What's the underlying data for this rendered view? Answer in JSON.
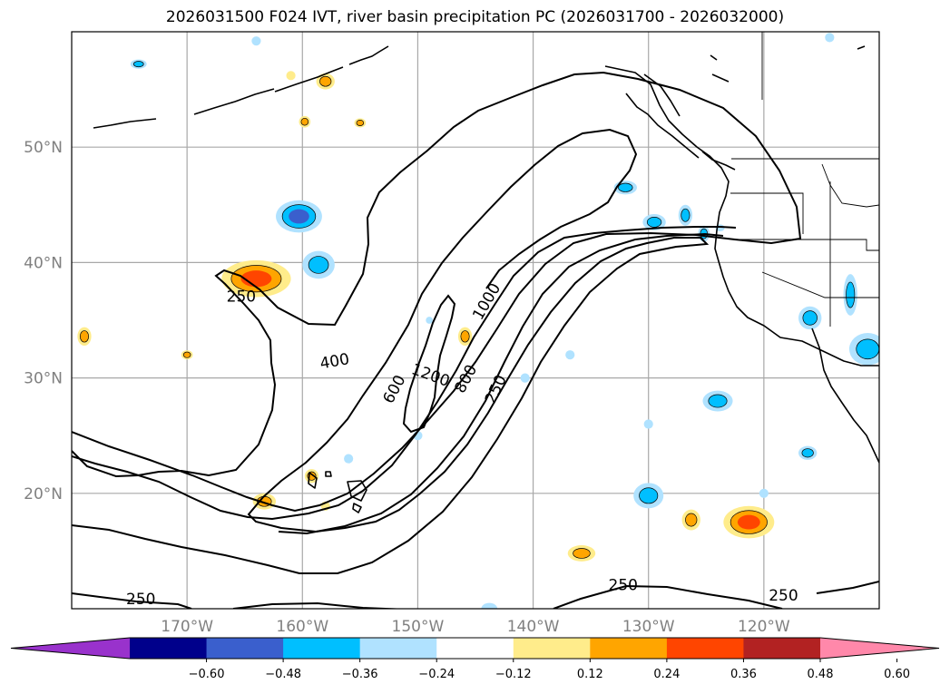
{
  "chart_data": {
    "type": "map-contour",
    "title": "2026031500 F024 IVT, river basin precipitation PC (2026031700 - 2026032000)",
    "lon_range": [
      -180,
      -110
    ],
    "lat_range": [
      10,
      60
    ],
    "x_ticks": [
      {
        "value": -170,
        "label": "170°W"
      },
      {
        "value": -160,
        "label": "160°W"
      },
      {
        "value": -150,
        "label": "150°W"
      },
      {
        "value": -140,
        "label": "140°W"
      },
      {
        "value": -130,
        "label": "130°W"
      },
      {
        "value": -120,
        "label": "120°W"
      }
    ],
    "y_ticks": [
      {
        "value": 20,
        "label": "20°N"
      },
      {
        "value": 30,
        "label": "30°N"
      },
      {
        "value": 40,
        "label": "40°N"
      },
      {
        "value": 50,
        "label": "50°N"
      }
    ],
    "ivt_contour_levels": [
      250,
      400,
      600,
      800,
      1000,
      1200
    ],
    "contour_labels": [
      {
        "text": "250",
        "lon": -165.3,
        "lat": 37.0,
        "angle": 0
      },
      {
        "text": "400",
        "lon": -157.2,
        "lat": 31.4,
        "angle": -10
      },
      {
        "text": "600",
        "lon": -152.0,
        "lat": 29.0,
        "angle": -62
      },
      {
        "text": "1200",
        "lon": -148.9,
        "lat": 30.2,
        "angle": 20
      },
      {
        "text": "800",
        "lon": -145.8,
        "lat": 29.9,
        "angle": -62
      },
      {
        "text": "1000",
        "lon": -144.0,
        "lat": 36.6,
        "angle": -60
      },
      {
        "text": "250",
        "lon": -143.2,
        "lat": 29.0,
        "angle": -65
      },
      {
        "text": "250",
        "lon": -174.0,
        "lat": 10.8,
        "angle": 0
      },
      {
        "text": "250",
        "lon": -132.2,
        "lat": 12.0,
        "angle": 0
      },
      {
        "text": "250",
        "lon": -118.3,
        "lat": 11.1,
        "angle": 0
      }
    ],
    "colorbar": {
      "colors": [
        "#9932CC",
        "#00008B",
        "#3A5FCD",
        "#00BFFF",
        "#B0E2FF",
        "#FFFFFF",
        "#FFEC8B",
        "#FFA500",
        "#FF4500",
        "#B22222",
        "#FF88AA"
      ],
      "ticks": [
        "−0.60",
        "−0.48",
        "−0.36",
        "−0.24",
        "−0.12",
        "0.12",
        "0.24",
        "0.36",
        "0.48",
        "0.60"
      ],
      "extend": "both"
    },
    "precip_pc_patches": [
      {
        "lon": -160.3,
        "lat": 44.0,
        "rx": 2.0,
        "ry": 1.4,
        "colors": [
          "#B0E2FF",
          "#00BFFF",
          "#3A5FCD"
        ]
      },
      {
        "lon": -158.6,
        "lat": 39.8,
        "rx": 1.4,
        "ry": 1.2,
        "colors": [
          "#B0E2FF",
          "#00BFFF"
        ]
      },
      {
        "lon": -164.0,
        "lat": 38.6,
        "rx": 3.0,
        "ry": 1.6,
        "colors": [
          "#FFEC8B",
          "#FFA500",
          "#FF4500"
        ]
      },
      {
        "lon": -158.0,
        "lat": 55.7,
        "rx": 0.8,
        "ry": 0.7,
        "colors": [
          "#FFEC8B",
          "#FFA500"
        ]
      },
      {
        "lon": -174.2,
        "lat": 57.2,
        "rx": 0.7,
        "ry": 0.4,
        "colors": [
          "#B0E2FF",
          "#00BFFF"
        ]
      },
      {
        "lon": -161.0,
        "lat": 56.2,
        "rx": 0.4,
        "ry": 0.4,
        "colors": [
          "#FFEC8B"
        ]
      },
      {
        "lon": -159.8,
        "lat": 52.2,
        "rx": 0.5,
        "ry": 0.5,
        "colors": [
          "#FFEC8B",
          "#FFA500"
        ]
      },
      {
        "lon": -155.0,
        "lat": 52.1,
        "rx": 0.5,
        "ry": 0.4,
        "colors": [
          "#FFEC8B",
          "#FFA500"
        ]
      },
      {
        "lon": -178.9,
        "lat": 33.6,
        "rx": 0.6,
        "ry": 0.8,
        "colors": [
          "#FFEC8B",
          "#FFA500"
        ]
      },
      {
        "lon": -170.0,
        "lat": 32.0,
        "rx": 0.5,
        "ry": 0.4,
        "colors": [
          "#FFEC8B",
          "#FFA500"
        ]
      },
      {
        "lon": -145.9,
        "lat": 33.6,
        "rx": 0.6,
        "ry": 0.8,
        "colors": [
          "#FFEC8B",
          "#FFA500"
        ]
      },
      {
        "lon": -149.0,
        "lat": 35.0,
        "rx": 0.3,
        "ry": 0.3,
        "colors": [
          "#B0E2FF"
        ]
      },
      {
        "lon": -132.0,
        "lat": 46.5,
        "rx": 1.0,
        "ry": 0.6,
        "colors": [
          "#B0E2FF",
          "#00BFFF"
        ]
      },
      {
        "lon": -129.5,
        "lat": 43.5,
        "rx": 1.0,
        "ry": 0.7,
        "colors": [
          "#B0E2FF",
          "#00BFFF"
        ]
      },
      {
        "lon": -126.8,
        "lat": 44.1,
        "rx": 0.6,
        "ry": 0.9,
        "colors": [
          "#B0E2FF",
          "#00BFFF"
        ]
      },
      {
        "lon": -125.2,
        "lat": 42.5,
        "rx": 0.5,
        "ry": 0.7,
        "colors": [
          "#B0E2FF",
          "#00BFFF"
        ]
      },
      {
        "lon": -123.8,
        "lat": 43.0,
        "rx": 0.4,
        "ry": 0.3,
        "colors": [
          "#B0E2FF"
        ]
      },
      {
        "lon": -116.0,
        "lat": 35.2,
        "rx": 1.0,
        "ry": 1.0,
        "colors": [
          "#B0E2FF",
          "#00BFFF"
        ]
      },
      {
        "lon": -112.5,
        "lat": 37.2,
        "rx": 0.6,
        "ry": 1.8,
        "colors": [
          "#B0E2FF",
          "#00BFFF"
        ]
      },
      {
        "lon": -111.0,
        "lat": 32.5,
        "rx": 1.6,
        "ry": 1.4,
        "colors": [
          "#B0E2FF",
          "#00BFFF"
        ]
      },
      {
        "lon": -124.0,
        "lat": 28.0,
        "rx": 1.3,
        "ry": 0.9,
        "colors": [
          "#B0E2FF",
          "#00BFFF"
        ]
      },
      {
        "lon": -136.8,
        "lat": 32.0,
        "rx": 0.4,
        "ry": 0.4,
        "colors": [
          "#B0E2FF"
        ]
      },
      {
        "lon": -140.7,
        "lat": 30.0,
        "rx": 0.4,
        "ry": 0.4,
        "colors": [
          "#B0E2FF"
        ]
      },
      {
        "lon": -130.0,
        "lat": 26.0,
        "rx": 0.4,
        "ry": 0.4,
        "colors": [
          "#B0E2FF"
        ]
      },
      {
        "lon": -150.0,
        "lat": 25.0,
        "rx": 0.4,
        "ry": 0.4,
        "colors": [
          "#B0E2FF"
        ]
      },
      {
        "lon": -156.0,
        "lat": 23.0,
        "rx": 0.4,
        "ry": 0.4,
        "colors": [
          "#B0E2FF"
        ]
      },
      {
        "lon": -130.0,
        "lat": 19.8,
        "rx": 1.3,
        "ry": 1.1,
        "colors": [
          "#B0E2FF",
          "#00BFFF"
        ]
      },
      {
        "lon": -116.2,
        "lat": 23.5,
        "rx": 0.8,
        "ry": 0.6,
        "colors": [
          "#B0E2FF",
          "#00BFFF"
        ]
      },
      {
        "lon": -120.0,
        "lat": 20.0,
        "rx": 0.4,
        "ry": 0.4,
        "colors": [
          "#B0E2FF"
        ]
      },
      {
        "lon": -143.8,
        "lat": 10.0,
        "rx": 0.7,
        "ry": 0.5,
        "colors": [
          "#B0E2FF"
        ]
      },
      {
        "lon": -114.3,
        "lat": 59.5,
        "rx": 0.4,
        "ry": 0.4,
        "colors": [
          "#B0E2FF"
        ]
      },
      {
        "lon": -164.0,
        "lat": 59.2,
        "rx": 0.4,
        "ry": 0.4,
        "colors": [
          "#B0E2FF"
        ]
      },
      {
        "lon": -159.2,
        "lat": 21.5,
        "rx": 0.6,
        "ry": 0.6,
        "colors": [
          "#FFEC8B",
          "#FFA500"
        ]
      },
      {
        "lon": -163.3,
        "lat": 19.3,
        "rx": 1.0,
        "ry": 0.7,
        "colors": [
          "#FFEC8B",
          "#FFA500"
        ]
      },
      {
        "lon": -158.0,
        "lat": 18.9,
        "rx": 0.4,
        "ry": 0.4,
        "colors": [
          "#FFEC8B"
        ]
      },
      {
        "lon": -135.8,
        "lat": 14.8,
        "rx": 1.2,
        "ry": 0.7,
        "colors": [
          "#FFEC8B",
          "#FFA500"
        ]
      },
      {
        "lon": -126.3,
        "lat": 17.7,
        "rx": 0.8,
        "ry": 0.9,
        "colors": [
          "#FFEC8B",
          "#FFA500"
        ]
      },
      {
        "lon": -121.3,
        "lat": 17.5,
        "rx": 2.2,
        "ry": 1.4,
        "colors": [
          "#FFEC8B",
          "#FFA500",
          "#FF4500"
        ]
      }
    ]
  }
}
